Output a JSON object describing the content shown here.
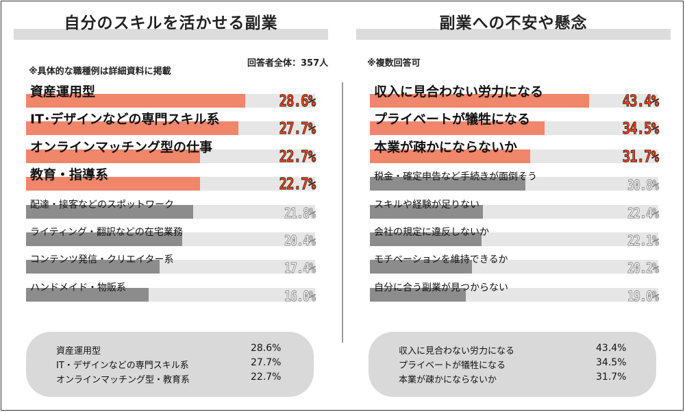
{
  "respondents": "回答者全体：357人",
  "left": {
    "title": "自分のスキルを活かせる副業",
    "note": "※具体的な職種例は詳細資料に掲載",
    "summary": [
      {
        "label": "資産運用型",
        "value": "28.6%"
      },
      {
        "label": "IT・デザインなどの専門スキル系",
        "value": "27.7%"
      },
      {
        "label": "オンラインマッチング型・教育系",
        "value": "22.7%"
      }
    ]
  },
  "right": {
    "title": "副業への不安や懸念",
    "note": "※複数回答可",
    "summary": [
      {
        "label": "収入に見合わない労力になる",
        "value": "43.4%"
      },
      {
        "label": "プライベートが犠牲になる",
        "value": "34.5%"
      },
      {
        "label": "本業が疎かにならないか",
        "value": "31.7%"
      }
    ]
  },
  "colors": {
    "highlight": "#f0866a",
    "normal": "#8c8c8c",
    "track": "#e6e6e6",
    "band": "#dcdcdc"
  },
  "chart_data": [
    {
      "type": "bar",
      "orientation": "horizontal",
      "title": "自分のスキルを活かせる副業",
      "unit": "%",
      "categories": [
        "資産運用型",
        "IT･デザインなどの専門スキル系",
        "オンラインマッチング型の仕事",
        "教育・指導系",
        "配達・接客などのスポットワーク",
        "ライティング・翻訳などの在宅業務",
        "コンテンツ発信・クリエイター系",
        "ハンドメイド・物販系"
      ],
      "values": [
        28.6,
        27.7,
        22.7,
        22.7,
        21.8,
        20.4,
        17.4,
        16.0
      ],
      "labels": [
        "28.6%",
        "27.7%",
        "22.7%",
        "22.7%",
        "21.8%",
        "20.4%",
        "17.4%",
        "16.0%"
      ],
      "highlighted_top": 4,
      "xlim": [
        0,
        35
      ]
    },
    {
      "type": "bar",
      "orientation": "horizontal",
      "title": "副業への不安や懸念",
      "unit": "%",
      "categories": [
        "収入に見合わない労力になる",
        "プライベートが犠牲になる",
        "本業が疎かにならないか",
        "税金・確定申告など手続きが面倒そう",
        "スキルや経験が足りない",
        "会社の規定に違反しないか",
        "モチベーションを維持できるか",
        "自分に合う副業が見つからない"
      ],
      "values": [
        43.4,
        34.5,
        31.7,
        30.8,
        22.4,
        22.1,
        20.2,
        19.0
      ],
      "labels": [
        "43.4%",
        "34.5%",
        "31.7%",
        "30.8%",
        "22.4%",
        "22.1%",
        "20.2%",
        "19.0%"
      ],
      "highlighted_top": 3,
      "xlim": [
        0,
        50
      ]
    }
  ]
}
